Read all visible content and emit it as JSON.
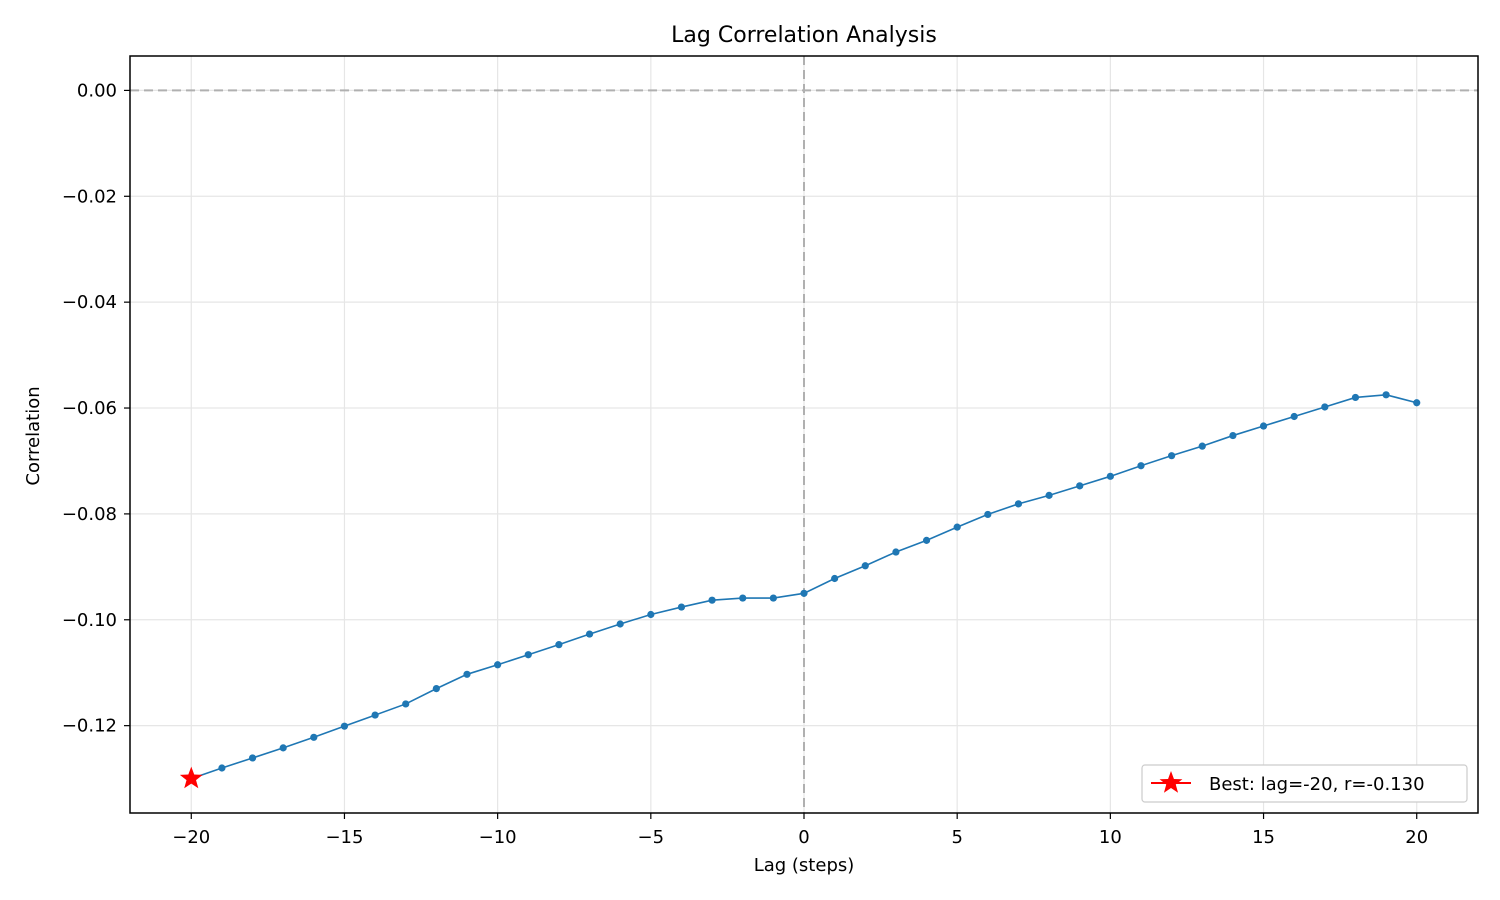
{
  "chart_data": {
    "type": "line",
    "title": "Lag Correlation Analysis",
    "xlabel": "Lag (steps)",
    "ylabel": "Correlation",
    "xlim": [
      -22,
      22
    ],
    "ylim": [
      -0.1365,
      0.0065
    ],
    "grid": true,
    "x_ticks": [
      -20,
      -15,
      -10,
      -5,
      0,
      5,
      10,
      15,
      20
    ],
    "x_tick_labels": [
      "−20",
      "−15",
      "−10",
      "−5",
      "0",
      "5",
      "10",
      "15",
      "20"
    ],
    "y_ticks": [
      0,
      -0.02,
      -0.04,
      -0.06,
      -0.08,
      -0.1,
      -0.12
    ],
    "y_tick_labels": [
      "0.00",
      "−0.02",
      "−0.04",
      "−0.06",
      "−0.08",
      "−0.10",
      "−0.12"
    ],
    "reference_lines": [
      {
        "axis": "y",
        "value": 0,
        "style": "dashed",
        "color": "#b0b0b0"
      },
      {
        "axis": "x",
        "value": 0,
        "style": "dashed",
        "color": "#b0b0b0"
      }
    ],
    "series": [
      {
        "color": "#1f77b4",
        "x": [
          -20,
          -19,
          -18,
          -17,
          -16,
          -15,
          -14,
          -13,
          -12,
          -11,
          -10,
          -9,
          -8,
          -7,
          -6,
          -5,
          -4,
          -3,
          -2,
          -1,
          0,
          1,
          2,
          3,
          4,
          5,
          6,
          7,
          8,
          9,
          10,
          11,
          12,
          13,
          14,
          15,
          16,
          17,
          18,
          19,
          20
        ],
        "y": [
          -0.13,
          -0.128,
          -0.1261,
          -0.1242,
          -0.1222,
          -0.1201,
          -0.118,
          -0.1159,
          -0.113,
          -0.1103,
          -0.1085,
          -0.1066,
          -0.1047,
          -0.1027,
          -0.1008,
          -0.099,
          -0.0976,
          -0.0963,
          -0.0959,
          -0.0959,
          -0.095,
          -0.0922,
          -0.0898,
          -0.0872,
          -0.085,
          -0.0825,
          -0.0801,
          -0.0781,
          -0.0765,
          -0.0747,
          -0.0729,
          -0.0709,
          -0.069,
          -0.0672,
          -0.0652,
          -0.0634,
          -0.0616,
          -0.0598,
          -0.058,
          -0.0575,
          -0.059
        ]
      }
    ],
    "best_point": {
      "x": -20,
      "y": -0.13,
      "color": "#ff0000",
      "marker": "star"
    },
    "legend": {
      "position": "bottom-right",
      "entries": [
        {
          "label": "Best: lag=-20, r=-0.130",
          "color": "#ff0000",
          "marker": "star"
        }
      ]
    }
  }
}
